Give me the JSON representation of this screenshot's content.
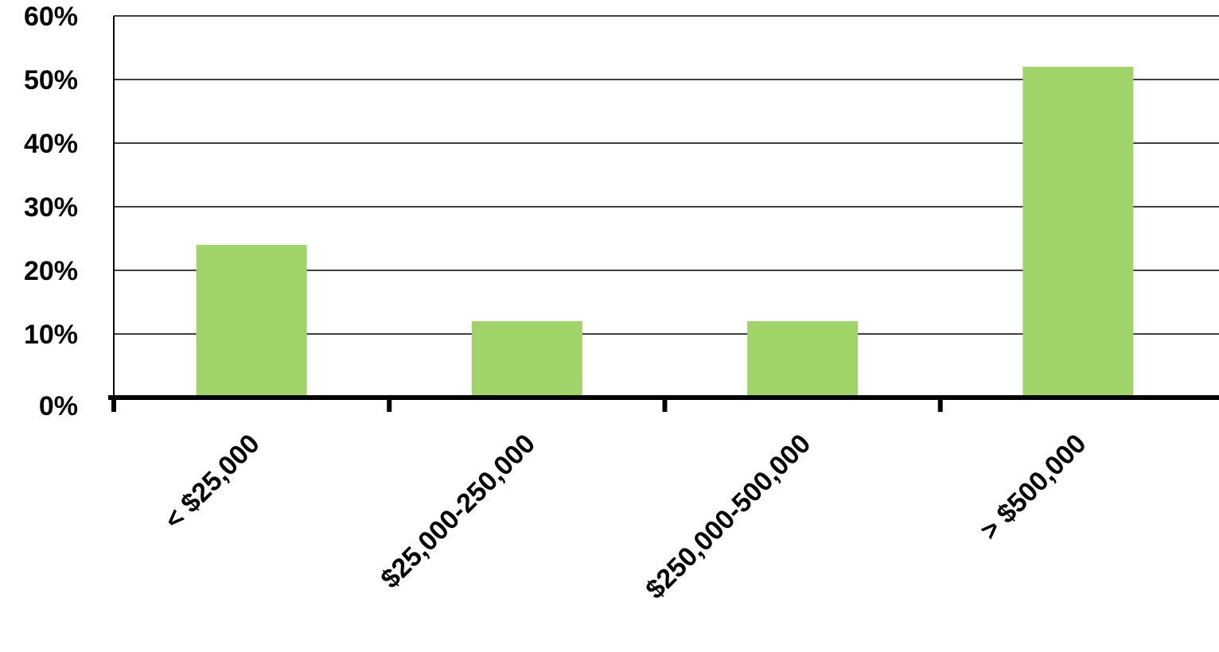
{
  "chart_data": {
    "type": "bar",
    "categories": [
      "< $25,000",
      "$25,000-250,000",
      "$250,000-500,000",
      "> $500,000"
    ],
    "values": [
      24,
      12,
      12,
      52
    ],
    "y_ticks": [
      "0%",
      "10%",
      "20%",
      "30%",
      "40%",
      "50%",
      "60%"
    ],
    "ylim": [
      0,
      60
    ],
    "grid": true,
    "legend": "none",
    "bar_color": "#a0d468"
  }
}
